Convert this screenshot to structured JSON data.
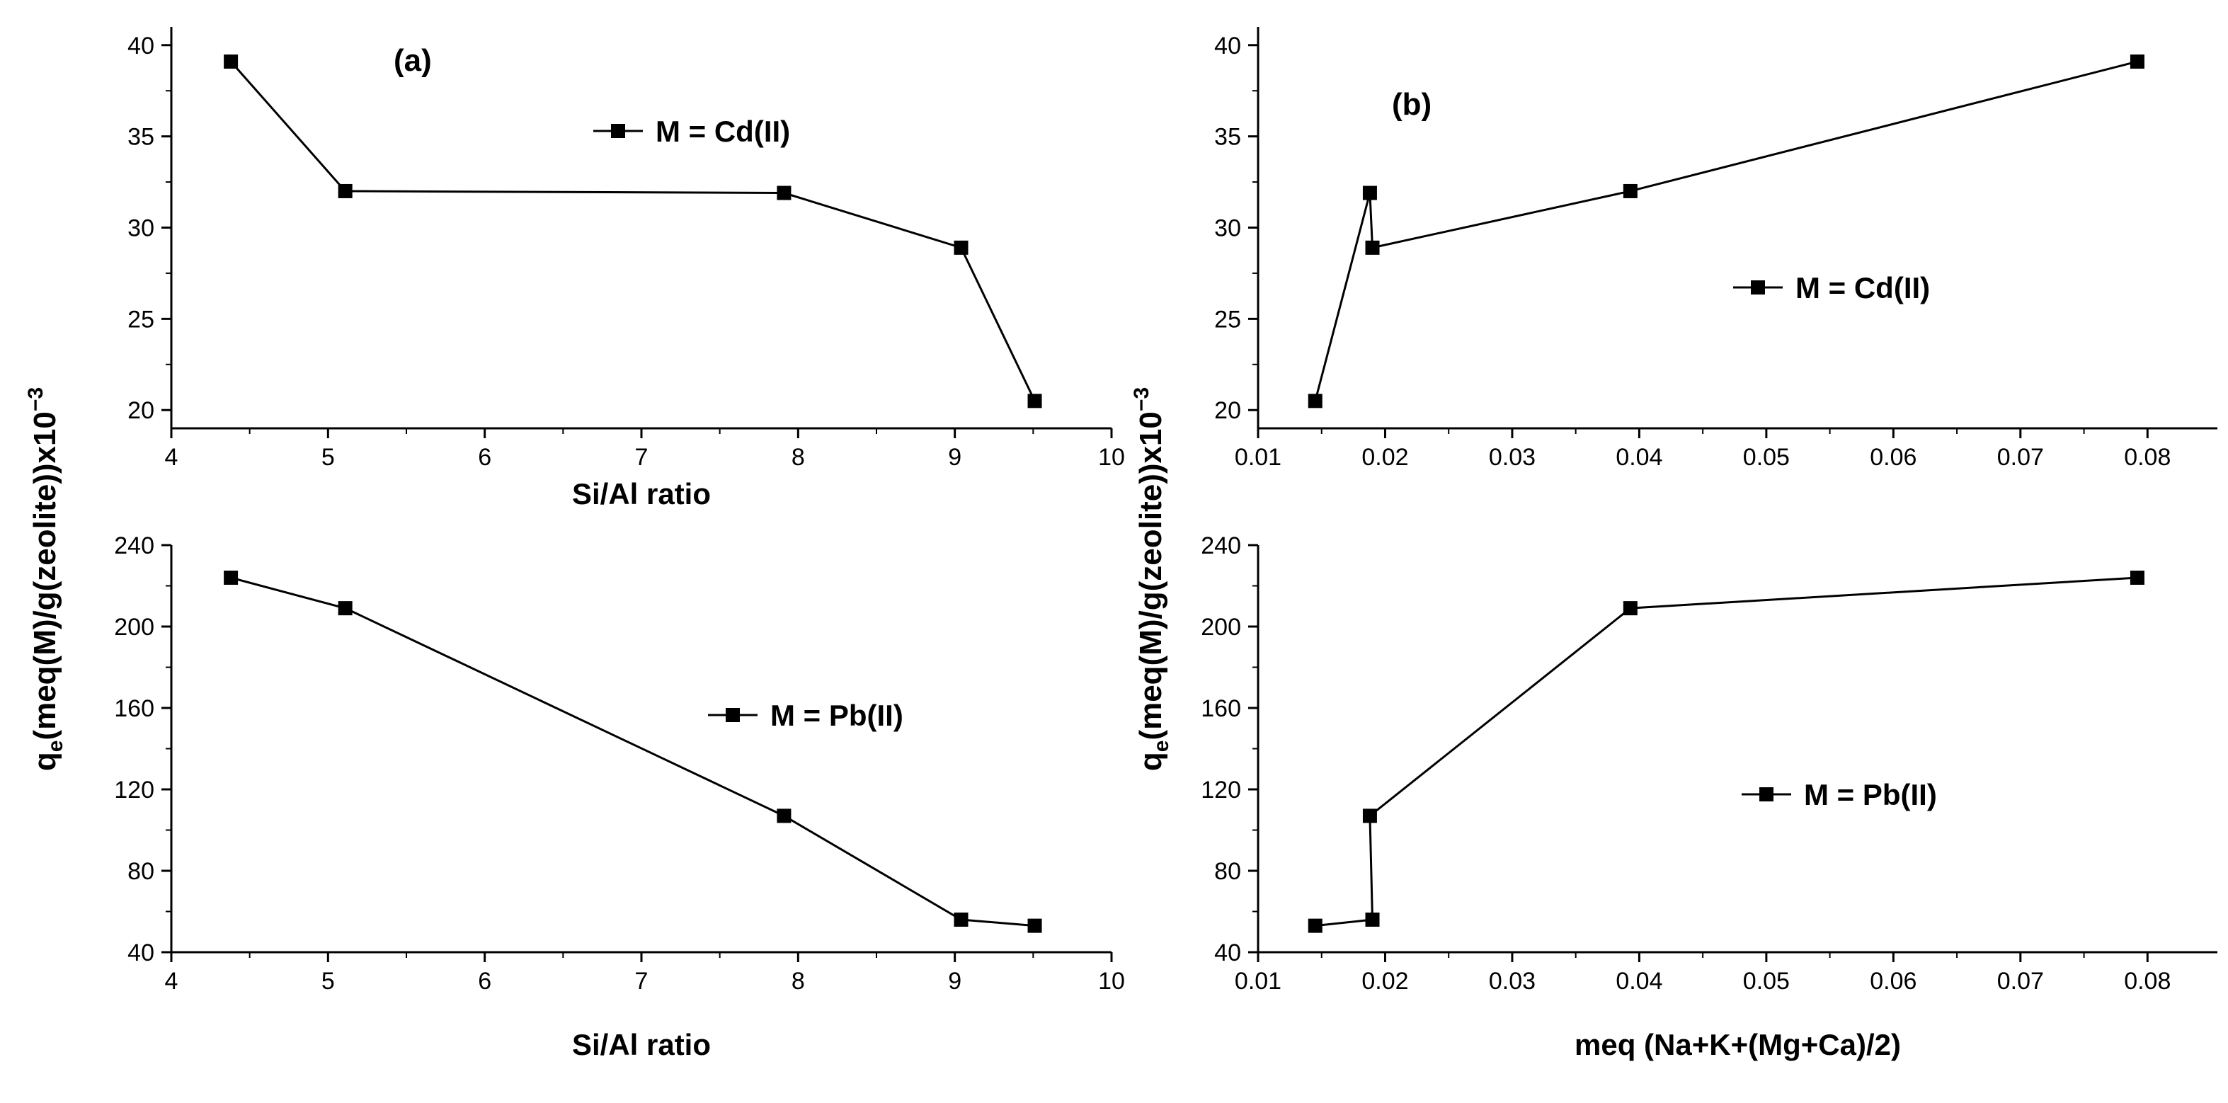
{
  "chart_data": [
    {
      "type": "line",
      "panel": "top-left",
      "panel_tag": "(a)",
      "xlabel": "Si/Al ratio",
      "xlim": [
        4,
        10
      ],
      "ylim": [
        19,
        41
      ],
      "xticks": [
        "4",
        "5",
        "6",
        "7",
        "8",
        "9",
        "10"
      ],
      "yticks": [
        "20",
        "25",
        "30",
        "35",
        "40"
      ],
      "series": [
        {
          "name": "M = Cd(II)",
          "x": [
            4.38,
            5.11,
            7.91,
            9.04,
            9.51
          ],
          "y": [
            39.1,
            32.0,
            31.9,
            28.9,
            20.5
          ]
        }
      ]
    },
    {
      "type": "line",
      "panel": "bottom-left",
      "xlabel": "Si/Al ratio",
      "xlim": [
        4,
        10
      ],
      "ylim": [
        40,
        240
      ],
      "xticks": [
        "4",
        "5",
        "6",
        "7",
        "8",
        "9",
        "10"
      ],
      "yticks": [
        "40",
        "80",
        "120",
        "160",
        "200",
        "240"
      ],
      "series": [
        {
          "name": "M = Pb(II)",
          "x": [
            4.38,
            5.11,
            7.91,
            9.04,
            9.51
          ],
          "y": [
            224,
            209,
            107,
            56,
            53
          ]
        }
      ]
    },
    {
      "type": "line",
      "panel": "top-right",
      "panel_tag": "(b)",
      "xlabel": "",
      "xlim": [
        0.01,
        0.0855
      ],
      "ylim": [
        19,
        41
      ],
      "xticks": [
        "0.01",
        "0.02",
        "0.03",
        "0.04",
        "0.05",
        "0.06",
        "0.07",
        "0.08"
      ],
      "yticks": [
        "20",
        "25",
        "30",
        "35",
        "40"
      ],
      "series": [
        {
          "name": "M = Cd(II)",
          "x": [
            0.0145,
            0.0188,
            0.019,
            0.0393,
            0.0792
          ],
          "y": [
            20.5,
            31.9,
            28.9,
            32.0,
            39.1
          ]
        }
      ]
    },
    {
      "type": "line",
      "panel": "bottom-right",
      "xlabel": "meq (Na+K+(Mg+Ca)/2)",
      "xlim": [
        0.01,
        0.0855
      ],
      "ylim": [
        40,
        240
      ],
      "xticks": [
        "0.01",
        "0.02",
        "0.03",
        "0.04",
        "0.05",
        "0.06",
        "0.07",
        "0.08"
      ],
      "yticks": [
        "40",
        "80",
        "120",
        "160",
        "200",
        "240"
      ],
      "series": [
        {
          "name": "M = Pb(II)",
          "x": [
            0.0145,
            0.019,
            0.0188,
            0.0393,
            0.0792
          ],
          "y": [
            53,
            56,
            107,
            209,
            224
          ]
        }
      ]
    }
  ],
  "ylabel": {
    "main": "q",
    "sub": "e",
    "rest": "(meq(M)/g(zeolite))x10",
    "exp": "−3"
  }
}
